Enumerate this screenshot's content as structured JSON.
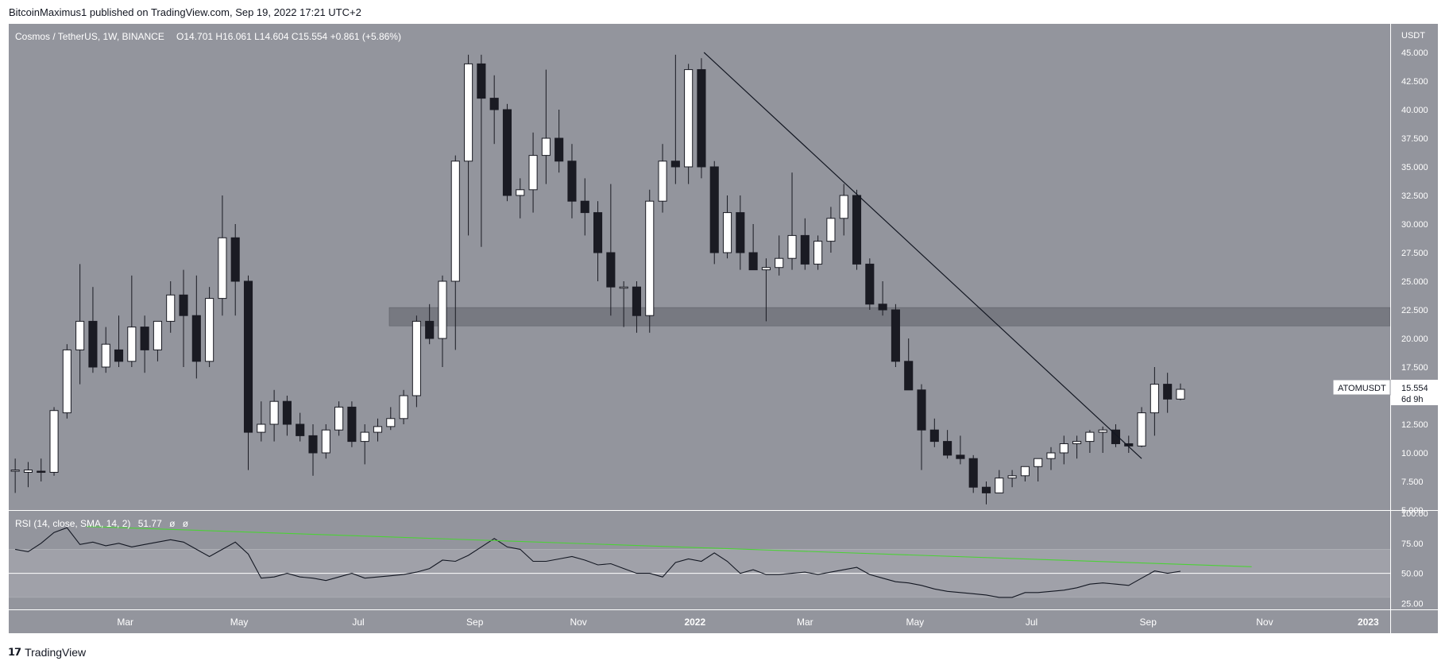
{
  "header": {
    "published_by": "BitcoinMaximus1 published on TradingView.com, Sep 19, 2022 17:21 UTC+2"
  },
  "footer": {
    "logo_text": "TradingView",
    "logo_icon": "tradingview-logo-icon"
  },
  "colors": {
    "background": "#93959d",
    "page": "#ffffff",
    "up_candle": "#ffffff",
    "down_candle": "#1a1b23",
    "wick": "#1a1b23",
    "support_zone": "#6e7078",
    "trendline": "#131722",
    "rsi_line": "#131722",
    "rsi_trendline": "#4cd137",
    "rsi_band": "#a5a7ae",
    "axis_text": "#ffffff"
  },
  "chart_data": [
    {
      "type": "candlestick",
      "title": "Cosmos / TetherUS, 1W, BINANCE",
      "ohlc_label": {
        "o_key": "O",
        "o_val": "14.701",
        "h_key": "H",
        "h_val": "16.061",
        "l_key": "L",
        "l_val": "14.604",
        "c_key": "C",
        "c_val": "15.554",
        "change": "+0.861 (+5.86%)"
      },
      "y_axis_unit": "USDT",
      "ylim": [
        5,
        47.5
      ],
      "y_ticks": [
        5,
        7.5,
        10,
        12.5,
        15,
        17.5,
        20,
        22.5,
        25,
        27.5,
        30,
        32.5,
        35,
        37.5,
        40,
        42.5,
        45
      ],
      "y_tick_labels": [
        "5.000",
        "7.500",
        "10.000",
        "12.500",
        "15.000",
        "17.500",
        "20.000",
        "22.500",
        "25.000",
        "27.500",
        "30.000",
        "32.500",
        "35.000",
        "37.500",
        "40.000",
        "42.500",
        "45.000"
      ],
      "x_tick_labels": [
        "Mar",
        "May",
        "Jul",
        "Sep",
        "Nov",
        "2022",
        "Mar",
        "May",
        "Jul",
        "Sep",
        "Nov",
        "2023"
      ],
      "x_tick_weeks": [
        8.5,
        17.3,
        26.5,
        35.5,
        43.5,
        52.5,
        61,
        69.5,
        78.5,
        87.5,
        96.5,
        104.5
      ],
      "x_total_weeks": 106.7,
      "price_label": {
        "symbol": "ATOMUSDT",
        "price": "15.554",
        "countdown": "6d 9h"
      },
      "support_zone": [
        21.1,
        22.7
      ],
      "trendline": {
        "from": [
          53.2,
          45.0
        ],
        "to": [
          87.0,
          9.5
        ]
      },
      "candles": [
        {
          "o": 8.5,
          "h": 9.5,
          "l": 6.5,
          "c": 8.5
        },
        {
          "o": 8.3,
          "h": 9.2,
          "l": 7.0,
          "c": 8.5
        },
        {
          "o": 8.4,
          "h": 9.5,
          "l": 7.5,
          "c": 8.3
        },
        {
          "o": 8.3,
          "h": 14.0,
          "l": 8.0,
          "c": 13.7
        },
        {
          "o": 13.5,
          "h": 19.5,
          "l": 13.0,
          "c": 19.0
        },
        {
          "o": 19.0,
          "h": 26.5,
          "l": 16.0,
          "c": 21.5
        },
        {
          "o": 21.5,
          "h": 24.5,
          "l": 17.0,
          "c": 17.5
        },
        {
          "o": 17.5,
          "h": 21.0,
          "l": 17.0,
          "c": 19.5
        },
        {
          "o": 19.0,
          "h": 22.0,
          "l": 17.5,
          "c": 18.0
        },
        {
          "o": 18.0,
          "h": 25.5,
          "l": 17.5,
          "c": 21.0
        },
        {
          "o": 21.0,
          "h": 22.0,
          "l": 17.0,
          "c": 19.0
        },
        {
          "o": 19.0,
          "h": 21.5,
          "l": 18.0,
          "c": 21.5
        },
        {
          "o": 21.5,
          "h": 25.0,
          "l": 20.5,
          "c": 23.8
        },
        {
          "o": 23.8,
          "h": 26.0,
          "l": 17.5,
          "c": 22.0
        },
        {
          "o": 22.0,
          "h": 25.5,
          "l": 16.5,
          "c": 18.0
        },
        {
          "o": 18.0,
          "h": 24.5,
          "l": 17.5,
          "c": 23.5
        },
        {
          "o": 23.5,
          "h": 32.5,
          "l": 22.0,
          "c": 28.8
        },
        {
          "o": 28.8,
          "h": 30.0,
          "l": 22.0,
          "c": 25.0
        },
        {
          "o": 25.0,
          "h": 25.5,
          "l": 8.5,
          "c": 11.8
        },
        {
          "o": 11.8,
          "h": 14.5,
          "l": 11.0,
          "c": 12.5
        },
        {
          "o": 12.5,
          "h": 15.5,
          "l": 11.0,
          "c": 14.5
        },
        {
          "o": 14.5,
          "h": 15.0,
          "l": 11.5,
          "c": 12.5
        },
        {
          "o": 12.5,
          "h": 13.5,
          "l": 11.0,
          "c": 11.5
        },
        {
          "o": 11.5,
          "h": 12.5,
          "l": 8.0,
          "c": 10.0
        },
        {
          "o": 10.0,
          "h": 12.5,
          "l": 9.5,
          "c": 12.0
        },
        {
          "o": 12.0,
          "h": 14.5,
          "l": 11.5,
          "c": 14.0
        },
        {
          "o": 14.0,
          "h": 14.5,
          "l": 10.5,
          "c": 11.0
        },
        {
          "o": 11.0,
          "h": 12.5,
          "l": 9.0,
          "c": 11.8
        },
        {
          "o": 11.8,
          "h": 13.0,
          "l": 11.0,
          "c": 12.3
        },
        {
          "o": 12.3,
          "h": 14.0,
          "l": 12.0,
          "c": 13.0
        },
        {
          "o": 13.0,
          "h": 15.5,
          "l": 12.5,
          "c": 15.0
        },
        {
          "o": 15.0,
          "h": 22.0,
          "l": 14.0,
          "c": 21.5
        },
        {
          "o": 21.5,
          "h": 23.0,
          "l": 19.5,
          "c": 20.0
        },
        {
          "o": 20.0,
          "h": 25.5,
          "l": 17.5,
          "c": 25.0
        },
        {
          "o": 25.0,
          "h": 36.0,
          "l": 19.0,
          "c": 35.5
        },
        {
          "o": 35.5,
          "h": 44.8,
          "l": 29.0,
          "c": 44.0
        },
        {
          "o": 44.0,
          "h": 44.8,
          "l": 28.0,
          "c": 41.0
        },
        {
          "o": 41.0,
          "h": 43.0,
          "l": 37.0,
          "c": 40.0
        },
        {
          "o": 40.0,
          "h": 40.5,
          "l": 32.0,
          "c": 32.5
        },
        {
          "o": 32.5,
          "h": 34.0,
          "l": 30.5,
          "c": 33.0
        },
        {
          "o": 33.0,
          "h": 38.0,
          "l": 31.0,
          "c": 36.0
        },
        {
          "o": 36.0,
          "h": 43.5,
          "l": 33.5,
          "c": 37.5
        },
        {
          "o": 37.5,
          "h": 40.0,
          "l": 34.5,
          "c": 35.5
        },
        {
          "o": 35.5,
          "h": 37.0,
          "l": 30.5,
          "c": 32.0
        },
        {
          "o": 32.0,
          "h": 34.0,
          "l": 29.0,
          "c": 31.0
        },
        {
          "o": 31.0,
          "h": 32.0,
          "l": 25.0,
          "c": 27.5
        },
        {
          "o": 27.5,
          "h": 33.5,
          "l": 22.0,
          "c": 24.5
        },
        {
          "o": 24.5,
          "h": 25.0,
          "l": 21.0,
          "c": 24.5
        },
        {
          "o": 24.5,
          "h": 25.0,
          "l": 20.5,
          "c": 22.0
        },
        {
          "o": 22.0,
          "h": 33.0,
          "l": 20.5,
          "c": 32.0
        },
        {
          "o": 32.0,
          "h": 37.0,
          "l": 31.0,
          "c": 35.5
        },
        {
          "o": 35.5,
          "h": 44.8,
          "l": 33.5,
          "c": 35.0
        },
        {
          "o": 35.0,
          "h": 44.0,
          "l": 33.5,
          "c": 43.5
        },
        {
          "o": 43.5,
          "h": 44.5,
          "l": 34.0,
          "c": 35.0
        },
        {
          "o": 35.0,
          "h": 35.5,
          "l": 26.5,
          "c": 27.5
        },
        {
          "o": 27.5,
          "h": 32.5,
          "l": 27.0,
          "c": 31.0
        },
        {
          "o": 31.0,
          "h": 32.5,
          "l": 26.0,
          "c": 27.5
        },
        {
          "o": 27.5,
          "h": 30.0,
          "l": 26.0,
          "c": 26.0
        },
        {
          "o": 26.0,
          "h": 27.0,
          "l": 21.5,
          "c": 26.2
        },
        {
          "o": 26.2,
          "h": 29.0,
          "l": 25.5,
          "c": 27.0
        },
        {
          "o": 27.0,
          "h": 34.5,
          "l": 26.0,
          "c": 29.0
        },
        {
          "o": 29.0,
          "h": 30.5,
          "l": 26.0,
          "c": 26.5
        },
        {
          "o": 26.5,
          "h": 29.0,
          "l": 26.0,
          "c": 28.5
        },
        {
          "o": 28.5,
          "h": 31.5,
          "l": 27.5,
          "c": 30.5
        },
        {
          "o": 30.5,
          "h": 33.5,
          "l": 29.0,
          "c": 32.5
        },
        {
          "o": 32.5,
          "h": 33.0,
          "l": 26.0,
          "c": 26.5
        },
        {
          "o": 26.5,
          "h": 27.0,
          "l": 22.5,
          "c": 23.0
        },
        {
          "o": 23.0,
          "h": 25.0,
          "l": 22.0,
          "c": 22.5
        },
        {
          "o": 22.5,
          "h": 23.0,
          "l": 17.5,
          "c": 18.0
        },
        {
          "o": 18.0,
          "h": 20.0,
          "l": 15.5,
          "c": 15.5
        },
        {
          "o": 15.5,
          "h": 16.0,
          "l": 8.5,
          "c": 12.0
        },
        {
          "o": 12.0,
          "h": 13.0,
          "l": 10.5,
          "c": 11.0
        },
        {
          "o": 11.0,
          "h": 12.0,
          "l": 9.5,
          "c": 9.8
        },
        {
          "o": 9.8,
          "h": 11.5,
          "l": 9.0,
          "c": 9.5
        },
        {
          "o": 9.5,
          "h": 9.8,
          "l": 6.5,
          "c": 7.0
        },
        {
          "o": 7.0,
          "h": 7.5,
          "l": 5.5,
          "c": 6.5
        },
        {
          "o": 6.5,
          "h": 8.5,
          "l": 6.5,
          "c": 7.8
        },
        {
          "o": 7.8,
          "h": 8.5,
          "l": 7.0,
          "c": 8.0
        },
        {
          "o": 8.0,
          "h": 8.8,
          "l": 7.5,
          "c": 8.8
        },
        {
          "o": 8.8,
          "h": 9.5,
          "l": 7.5,
          "c": 9.5
        },
        {
          "o": 9.5,
          "h": 10.5,
          "l": 8.5,
          "c": 10.0
        },
        {
          "o": 10.0,
          "h": 11.5,
          "l": 9.0,
          "c": 10.8
        },
        {
          "o": 10.8,
          "h": 11.5,
          "l": 9.5,
          "c": 11.0
        },
        {
          "o": 11.0,
          "h": 12.0,
          "l": 10.0,
          "c": 11.8
        },
        {
          "o": 11.8,
          "h": 12.3,
          "l": 10.0,
          "c": 12.0
        },
        {
          "o": 12.0,
          "h": 12.5,
          "l": 10.5,
          "c": 10.8
        },
        {
          "o": 10.8,
          "h": 11.5,
          "l": 10.0,
          "c": 10.6
        },
        {
          "o": 10.6,
          "h": 14.0,
          "l": 10.5,
          "c": 13.5
        },
        {
          "o": 13.5,
          "h": 17.5,
          "l": 11.5,
          "c": 16.0
        },
        {
          "o": 16.0,
          "h": 17.0,
          "l": 13.5,
          "c": 14.7
        },
        {
          "o": 14.701,
          "h": 16.061,
          "l": 14.604,
          "c": 15.554
        }
      ]
    },
    {
      "type": "line",
      "title": "RSI (14, close, SMA, 14, 2)",
      "value_label": "51.77",
      "extra_labels": [
        "ø",
        "ø"
      ],
      "ylim": [
        20,
        102
      ],
      "y_ticks": [
        25,
        50,
        75,
        100
      ],
      "y_tick_labels": [
        "25.00",
        "50.00",
        "75.00",
        "100.00"
      ],
      "band": [
        30,
        70
      ],
      "midline": 50,
      "trendline": {
        "from": [
          5.5,
          89.0
        ],
        "to": [
          95.5,
          55.5
        ]
      },
      "series": [
        {
          "values": [
            70,
            68,
            75,
            84,
            88,
            74,
            76,
            73,
            75,
            72,
            74,
            76,
            78,
            76,
            70,
            64,
            70,
            76,
            66,
            46,
            47,
            50,
            47,
            46,
            44,
            47,
            50,
            46,
            47,
            48,
            49,
            51,
            54,
            61,
            60,
            65,
            72,
            79,
            72,
            70,
            60,
            60,
            62,
            64,
            61,
            57,
            58,
            54,
            50,
            50,
            47,
            59,
            62,
            60,
            67,
            60,
            50,
            53,
            49,
            49,
            50,
            51,
            49,
            51,
            53,
            55,
            49,
            46,
            43,
            42,
            40,
            37,
            35,
            34,
            33,
            32,
            30,
            30,
            34,
            34,
            35,
            36,
            38,
            41,
            42,
            41,
            40,
            46,
            52,
            50,
            51.77
          ]
        }
      ]
    }
  ]
}
